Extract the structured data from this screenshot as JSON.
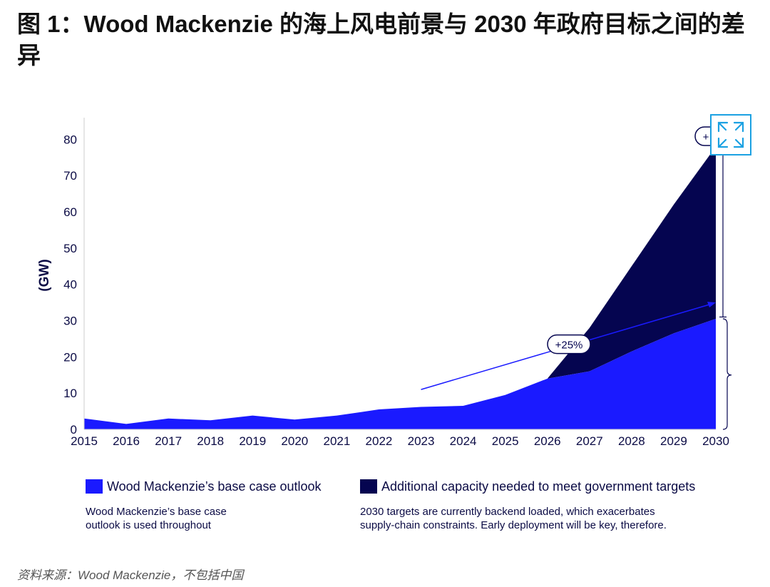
{
  "title": "图 1：Wood Mackenzie 的海上风电前景与 2030 年政府目标之间的差异",
  "chart_data": {
    "type": "area",
    "ylabel": "(GW)",
    "xlabel": "",
    "ylim": [
      0,
      85
    ],
    "yticks": [
      0,
      10,
      20,
      30,
      40,
      50,
      60,
      70,
      80
    ],
    "x": [
      "2015",
      "2016",
      "2017",
      "2018",
      "2019",
      "2020",
      "2021",
      "2022",
      "2023",
      "2024",
      "2025",
      "2026",
      "2027",
      "2028",
      "2029",
      "2030"
    ],
    "series": [
      {
        "name": "Wood Mackenzie’s base case outlook",
        "color": "#1a1aff",
        "values": [
          3,
          1.5,
          3,
          2.5,
          3.8,
          2.7,
          3.8,
          5.5,
          6.2,
          6.5,
          9.5,
          14,
          16,
          21.5,
          26.5,
          30.5
        ]
      },
      {
        "name": "Additional capacity needed to meet government targets",
        "color": "#050550",
        "totals": [
          null,
          null,
          null,
          null,
          null,
          null,
          null,
          null,
          null,
          null,
          null,
          14,
          28,
          45,
          62,
          78
        ]
      }
    ],
    "annotations": [
      {
        "text": "+25%"
      },
      {
        "text": "+"
      }
    ],
    "legend_notes": [
      [
        "Wood Mackenzie’s base case",
        "outlook is used throughout"
      ],
      [
        "2030 targets are currently backend loaded, which exacerbates",
        "supply-chain constraints. Early deployment will be key, therefore."
      ]
    ]
  },
  "icons": {
    "expand": "expand-icon"
  },
  "source": "资料来源：Wood Mackenzie，不包括中国"
}
